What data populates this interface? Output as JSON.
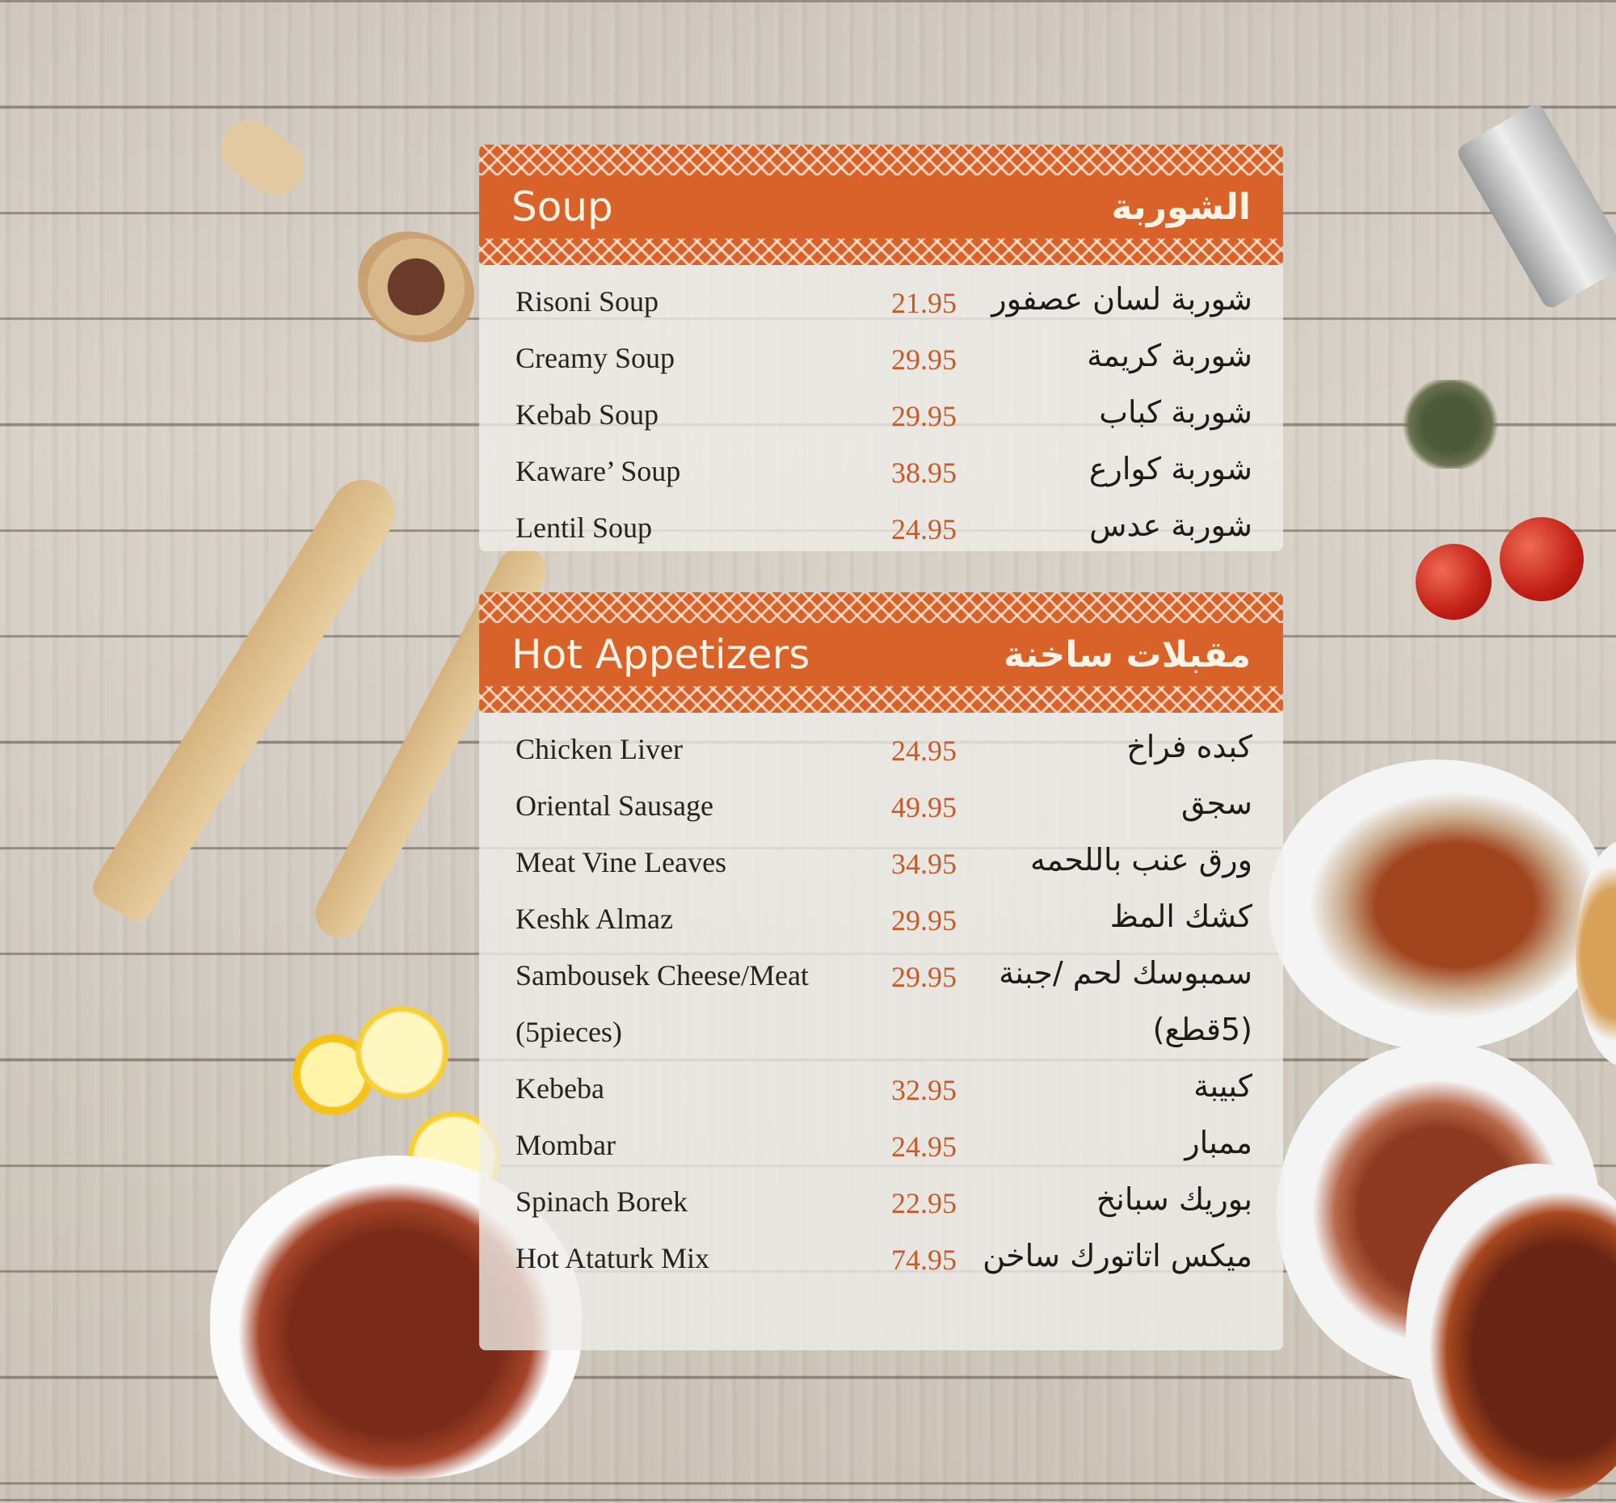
{
  "sections": [
    {
      "title": "Soup",
      "title_ar": "الشوربة",
      "items": [
        {
          "name": "Risoni Soup",
          "price": "21.95",
          "name_ar": "شوربة لسان عصفور"
        },
        {
          "name": "Creamy Soup",
          "price": "29.95",
          "name_ar": "شوربة كريمة"
        },
        {
          "name": "Kebab Soup",
          "price": "29.95",
          "name_ar": "شوربة كباب"
        },
        {
          "name": "Kaware’ Soup",
          "price": "38.95",
          "name_ar": "شوربة كوارع"
        },
        {
          "name": "Lentil Soup",
          "price": "24.95",
          "name_ar": "شوربة عدس"
        }
      ]
    },
    {
      "title": "Hot Appetizers",
      "title_ar": "مقبلات ساخنة",
      "items": [
        {
          "name": "Chicken Liver",
          "price": "24.95",
          "name_ar": "كبده فراخ"
        },
        {
          "name": "Oriental Sausage",
          "price": "49.95",
          "name_ar": "سجق"
        },
        {
          "name": "Meat Vine Leaves",
          "price": "34.95",
          "name_ar": "ورق عنب باللحمه"
        },
        {
          "name": "Keshk Almaz",
          "price": "29.95",
          "name_ar": "كشك المظ"
        },
        {
          "name": "Sambousek Cheese/Meat",
          "price": "29.95",
          "name_ar": "سمبوسك لحم /جبنة"
        },
        {
          "name": "(5pieces)",
          "price": "",
          "name_ar": "(5قطع)"
        },
        {
          "name": "Kebeba",
          "price": "32.95",
          "name_ar": "كبيبة"
        },
        {
          "name": "Mombar",
          "price": "24.95",
          "name_ar": "ممبار"
        },
        {
          "name": "Spinach Borek",
          "price": "22.95",
          "name_ar": "بوريك سبانخ"
        },
        {
          "name": "Hot Ataturk Mix",
          "price": "74.95",
          "name_ar": "ميكس اتاتورك ساخن"
        }
      ]
    }
  ],
  "colors": {
    "accent": "#d9622b",
    "price": "#c65a28",
    "background": "#d2cbc1"
  }
}
